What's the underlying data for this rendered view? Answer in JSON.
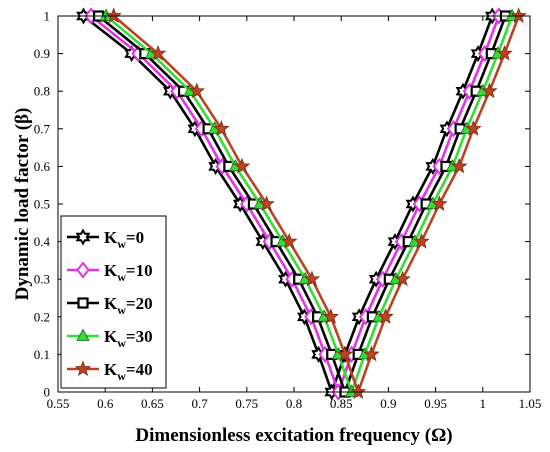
{
  "chart_data": {
    "type": "line",
    "title": "",
    "xlabel": "Dimensionless excitation frequency (Ω)",
    "ylabel": "Dynamic load factor (β)",
    "xlim": [
      0.55,
      1.05
    ],
    "ylim": [
      0,
      1
    ],
    "xticks": [
      "0.55",
      "0.6",
      "0.65",
      "0.7",
      "0.75",
      "0.8",
      "0.85",
      "0.9",
      "0.95",
      "1",
      "1.05"
    ],
    "yticks": [
      "0",
      "0.1",
      "0.2",
      "0.3",
      "0.4",
      "0.5",
      "0.6",
      "0.7",
      "0.8",
      "0.9",
      "1"
    ],
    "grid": false,
    "legend_position": "lower-left",
    "beta": [
      0,
      0.1,
      0.2,
      0.3,
      0.4,
      0.5,
      0.6,
      0.7,
      0.8,
      0.9,
      1.0
    ],
    "series": [
      {
        "name": "Kw=0",
        "label_base": "K",
        "label_sub": "w",
        "label_rest": "=0",
        "color": "#000000",
        "marker": "hexagram",
        "left": [
          0.84,
          0.826,
          0.811,
          0.791,
          0.767,
          0.743,
          0.717,
          0.695,
          0.669,
          0.628,
          0.577
        ],
        "right": [
          0.84,
          0.854,
          0.869,
          0.887,
          0.907,
          0.926,
          0.947,
          0.962,
          0.979,
          0.995,
          1.01
        ]
      },
      {
        "name": "Kw=10",
        "label_base": "K",
        "label_sub": "w",
        "label_rest": "=10",
        "color": "#e233e6",
        "marker": "diamond",
        "left": [
          0.847,
          0.833,
          0.818,
          0.798,
          0.774,
          0.75,
          0.724,
          0.702,
          0.676,
          0.635,
          0.585
        ],
        "right": [
          0.847,
          0.861,
          0.876,
          0.894,
          0.914,
          0.933,
          0.954,
          0.969,
          0.986,
          1.002,
          1.017
        ]
      },
      {
        "name": "Kw=20",
        "label_base": "K",
        "label_sub": "w",
        "label_rest": "=20",
        "color": "#000000",
        "marker": "square",
        "left": [
          0.854,
          0.84,
          0.825,
          0.805,
          0.781,
          0.757,
          0.731,
          0.709,
          0.683,
          0.642,
          0.593
        ],
        "right": [
          0.854,
          0.868,
          0.883,
          0.901,
          0.921,
          0.94,
          0.961,
          0.976,
          0.993,
          1.009,
          1.024
        ]
      },
      {
        "name": "Kw=30",
        "label_base": "K",
        "label_sub": "w",
        "label_rest": "=30",
        "color": "#33dd33",
        "marker": "triangle",
        "left": [
          0.861,
          0.847,
          0.832,
          0.812,
          0.788,
          0.764,
          0.738,
          0.716,
          0.69,
          0.649,
          0.601
        ],
        "right": [
          0.861,
          0.875,
          0.89,
          0.908,
          0.928,
          0.947,
          0.968,
          0.983,
          1.0,
          1.016,
          1.031
        ]
      },
      {
        "name": "Kw=40",
        "label_base": "K",
        "label_sub": "w",
        "label_rest": "=40",
        "color": "#b84423",
        "marker": "pentagram",
        "left": [
          0.868,
          0.854,
          0.839,
          0.819,
          0.795,
          0.771,
          0.745,
          0.723,
          0.697,
          0.656,
          0.609
        ],
        "right": [
          0.868,
          0.882,
          0.897,
          0.915,
          0.935,
          0.954,
          0.975,
          0.99,
          1.007,
          1.023,
          1.038
        ]
      }
    ]
  }
}
